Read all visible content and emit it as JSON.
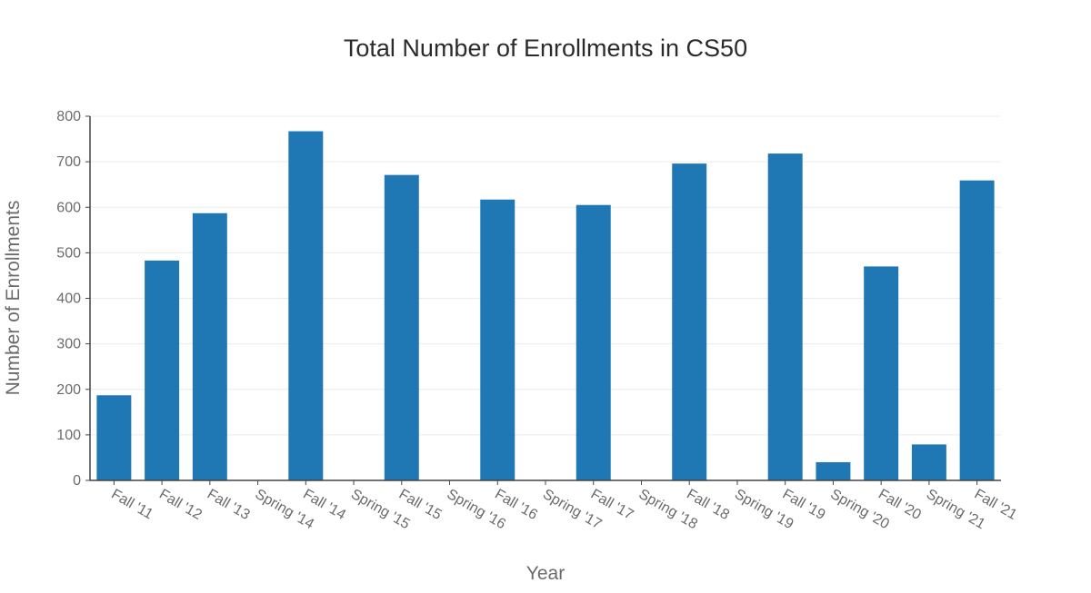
{
  "chart_data": {
    "type": "bar",
    "title": "Total Number of Enrollments in CS50",
    "xlabel": "Year",
    "ylabel": "Number of Enrollments",
    "ylim": [
      0,
      800
    ],
    "yticks": [
      0,
      100,
      200,
      300,
      400,
      500,
      600,
      700,
      800
    ],
    "ytick_labels": [
      "0",
      "100",
      "200",
      "300",
      "400",
      "500",
      "600",
      "700",
      "800"
    ],
    "grid": true,
    "color": "#1f77b4",
    "categories": [
      "Fall '11",
      "Fall '12",
      "Fall '13",
      "Spring '14",
      "Fall '14",
      "Spring '15",
      "Fall '15",
      "Spring '16",
      "Fall '16",
      "Spring '17",
      "Fall '17",
      "Spring '18",
      "Fall '18",
      "Spring '19",
      "Fall '19",
      "Spring '20",
      "Fall '20",
      "Spring '21",
      "Fall '21"
    ],
    "bars": [
      {
        "label": "Fall '11",
        "value": 187
      },
      {
        "label": "Fall '12",
        "value": 483
      },
      {
        "label": "Fall '13",
        "value": 587
      },
      {
        "label": "Fall '14",
        "value": 767
      },
      {
        "label": "Fall '15",
        "value": 671
      },
      {
        "label": "Fall '16",
        "value": 617
      },
      {
        "label": "Fall '17",
        "value": 605
      },
      {
        "label": "Fall '18",
        "value": 696
      },
      {
        "label": "Fall '19",
        "value": 718
      },
      {
        "label": "Spring '20",
        "value": 40
      },
      {
        "label": "Fall '20",
        "value": 470
      },
      {
        "label": "Spring '21",
        "value": 79
      },
      {
        "label": "Fall '21",
        "value": 659
      }
    ]
  }
}
